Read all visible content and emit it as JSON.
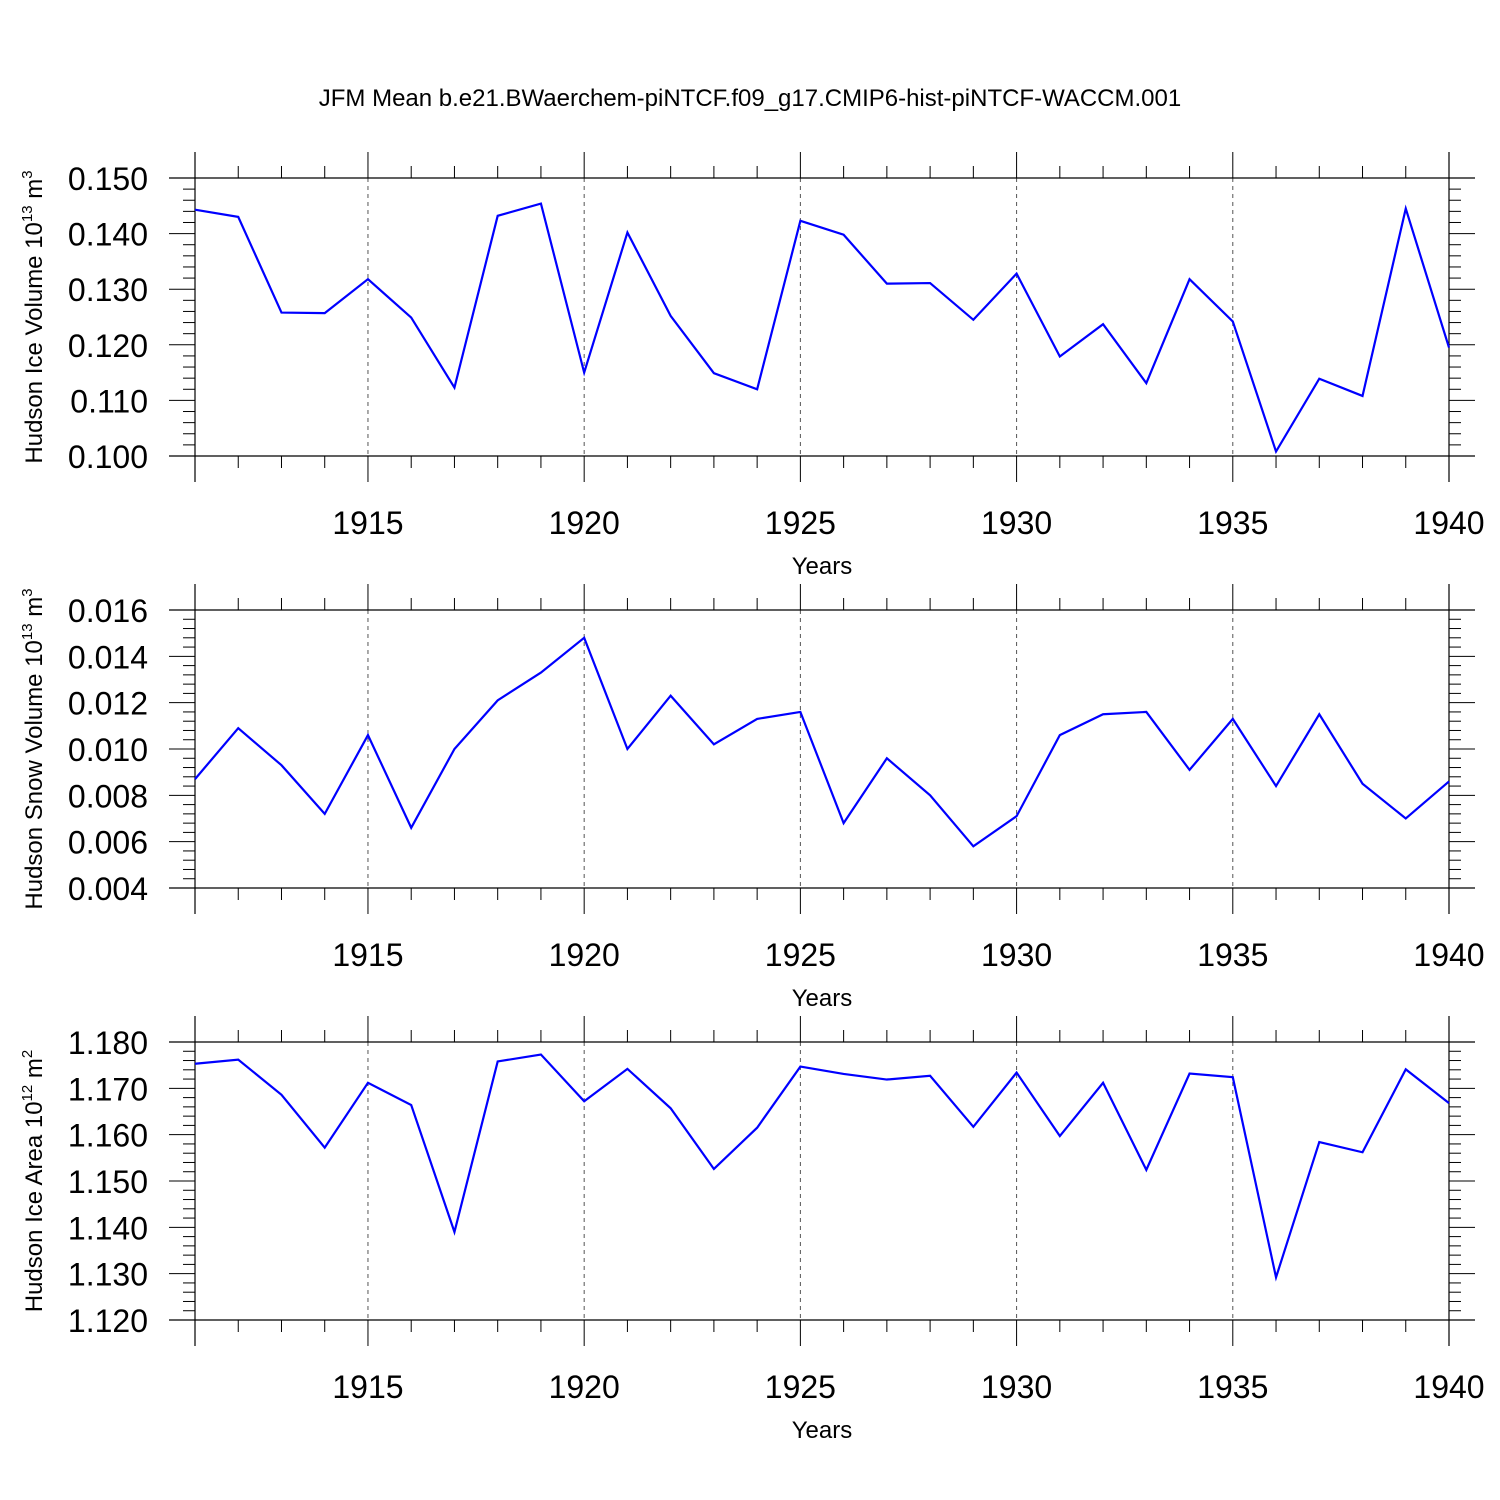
{
  "title": "JFM Mean b.e21.BWaerchem-piNTCF.f09_g17.CMIP6-hist-piNTCF-WACCM.001",
  "colors": {
    "line": "#0000ff",
    "axis": "#000000",
    "grid": "#555555",
    "background": "#ffffff"
  },
  "chart_data": [
    {
      "type": "line",
      "xlabel": "Years",
      "ylabel": {
        "text": "Hudson Ice Volume 10",
        "exp": "13",
        "unit_text": " m",
        "unit_exp": "3"
      },
      "x": [
        1911,
        1912,
        1913,
        1914,
        1915,
        1916,
        1917,
        1918,
        1919,
        1920,
        1921,
        1922,
        1923,
        1924,
        1925,
        1926,
        1927,
        1928,
        1929,
        1930,
        1931,
        1932,
        1933,
        1934,
        1935,
        1936,
        1937,
        1938,
        1939,
        1940
      ],
      "values": [
        0.1443,
        0.143,
        0.1258,
        0.1257,
        0.1318,
        0.1249,
        0.1123,
        0.1432,
        0.1454,
        0.115,
        0.1402,
        0.1252,
        0.1149,
        0.112,
        0.1423,
        0.1398,
        0.131,
        0.1311,
        0.1245,
        0.1328,
        0.1179,
        0.1237,
        0.1131,
        0.1318,
        0.1242,
        0.1008,
        0.1139,
        0.1108,
        0.1445,
        0.1195
      ],
      "xlim": [
        1911,
        1940
      ],
      "ylim": [
        0.1,
        0.15
      ],
      "xticks": [
        "1915",
        "1920",
        "1925",
        "1930",
        "1935",
        "1940"
      ],
      "yticks": [
        "0.100",
        "0.110",
        "0.120",
        "0.130",
        "0.140",
        "0.150"
      ],
      "grid": "vertical dashed at major x ticks"
    },
    {
      "type": "line",
      "xlabel": "Years",
      "ylabel": {
        "text": "Hudson Snow Volume 10",
        "exp": "13",
        "unit_text": " m",
        "unit_exp": "3"
      },
      "x": [
        1911,
        1912,
        1913,
        1914,
        1915,
        1916,
        1917,
        1918,
        1919,
        1920,
        1921,
        1922,
        1923,
        1924,
        1925,
        1926,
        1927,
        1928,
        1929,
        1930,
        1931,
        1932,
        1933,
        1934,
        1935,
        1936,
        1937,
        1938,
        1939,
        1940
      ],
      "values": [
        0.0087,
        0.0109,
        0.0093,
        0.0072,
        0.0106,
        0.0066,
        0.01,
        0.0121,
        0.0133,
        0.0148,
        0.01,
        0.0123,
        0.0102,
        0.0113,
        0.0116,
        0.0068,
        0.0096,
        0.008,
        0.0058,
        0.0071,
        0.0106,
        0.0115,
        0.0116,
        0.0091,
        0.0113,
        0.0084,
        0.0115,
        0.0085,
        0.007,
        0.0086
      ],
      "xlim": [
        1911,
        1940
      ],
      "ylim": [
        0.004,
        0.016
      ],
      "xticks": [
        "1915",
        "1920",
        "1925",
        "1930",
        "1935",
        "1940"
      ],
      "yticks": [
        "0.004",
        "0.006",
        "0.008",
        "0.010",
        "0.012",
        "0.014",
        "0.016"
      ],
      "grid": "vertical dashed at major x ticks"
    },
    {
      "type": "line",
      "xlabel": "Years",
      "ylabel": {
        "text": "Hudson Ice Area 10",
        "exp": "12",
        "unit_text": " m",
        "unit_exp": "2"
      },
      "x": [
        1911,
        1912,
        1913,
        1914,
        1915,
        1916,
        1917,
        1918,
        1919,
        1920,
        1921,
        1922,
        1923,
        1924,
        1925,
        1926,
        1927,
        1928,
        1929,
        1930,
        1931,
        1932,
        1933,
        1934,
        1935,
        1936,
        1937,
        1938,
        1939,
        1940
      ],
      "values": [
        1.1753,
        1.1762,
        1.1686,
        1.1572,
        1.1712,
        1.1664,
        1.139,
        1.1758,
        1.1773,
        1.1672,
        1.1742,
        1.1657,
        1.1526,
        1.1615,
        1.1747,
        1.1731,
        1.1719,
        1.1727,
        1.1617,
        1.1734,
        1.1597,
        1.1712,
        1.1524,
        1.1732,
        1.1724,
        1.1292,
        1.1584,
        1.1562,
        1.1741,
        1.1668
      ],
      "xlim": [
        1911,
        1940
      ],
      "ylim": [
        1.12,
        1.18
      ],
      "xticks": [
        "1915",
        "1920",
        "1925",
        "1930",
        "1935",
        "1940"
      ],
      "yticks": [
        "1.120",
        "1.130",
        "1.140",
        "1.150",
        "1.160",
        "1.170",
        "1.180"
      ],
      "grid": "vertical dashed at major x ticks"
    }
  ]
}
